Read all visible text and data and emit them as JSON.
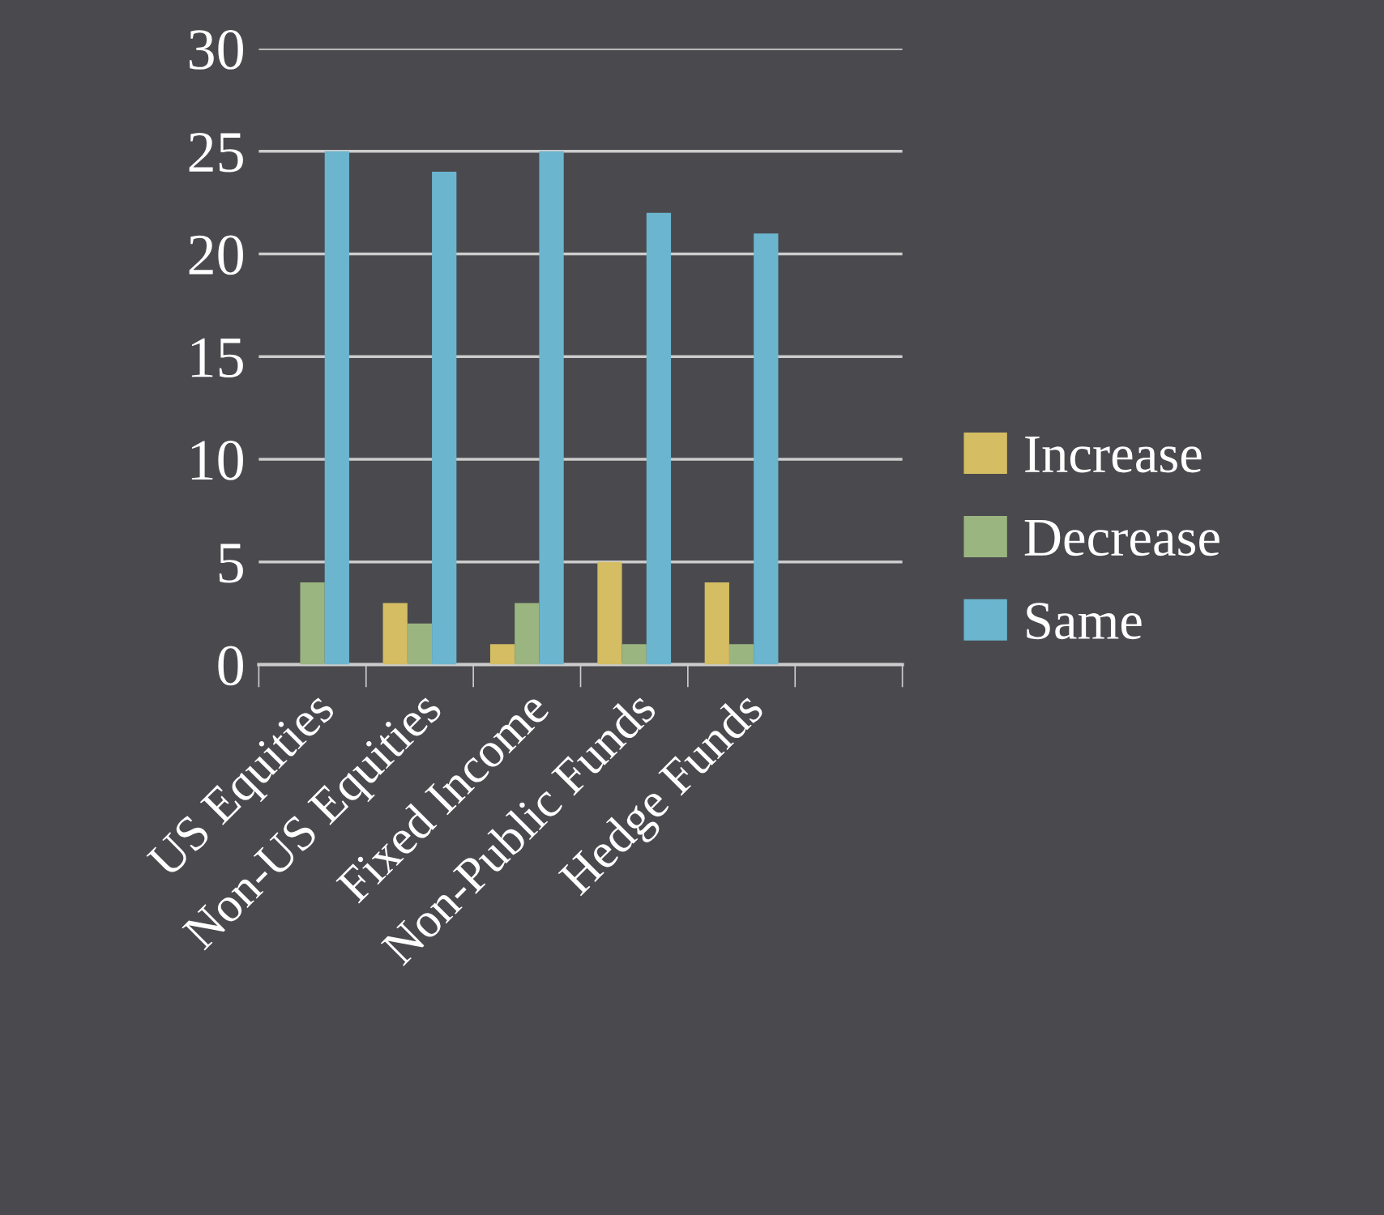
{
  "chart_data": {
    "type": "bar",
    "categories": [
      "US Equities",
      "Non-US Equities",
      "Fixed Income",
      "Non-Public Funds",
      "Hedge Funds",
      null
    ],
    "series": [
      {
        "name": "Increase",
        "color": "#d4bd63",
        "values": [
          0,
          3,
          1,
          5,
          4,
          null
        ]
      },
      {
        "name": "Decrease",
        "color": "#9bb580",
        "values": [
          4,
          2,
          3,
          1,
          1,
          null
        ]
      },
      {
        "name": "Same",
        "color": "#6bb5cf",
        "values": [
          25,
          24,
          25,
          22,
          21,
          null
        ]
      }
    ],
    "ylim": [
      0,
      30
    ],
    "yticks": [
      0,
      5,
      10,
      15,
      20,
      25,
      30
    ],
    "grid": "y",
    "legend": "right"
  }
}
